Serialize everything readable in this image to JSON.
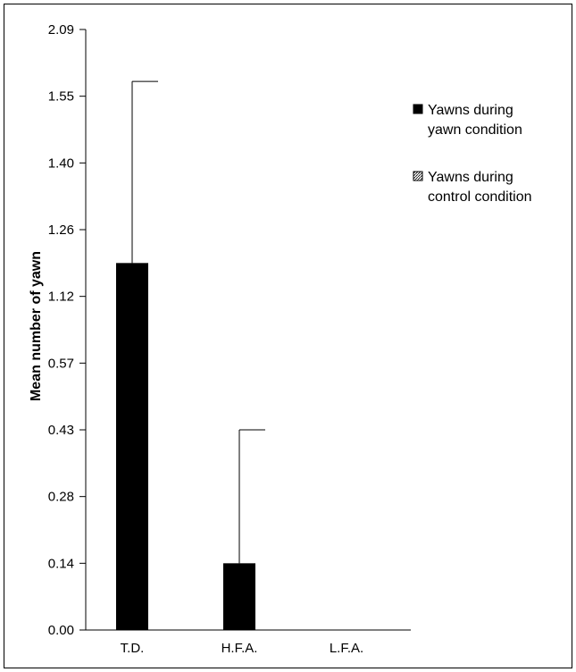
{
  "chart_data": {
    "type": "bar",
    "title": "",
    "xlabel": "",
    "ylabel": "Mean number of yawn",
    "y_tick_labels": [
      "0.00",
      "0.14",
      "0.28",
      "0.43",
      "0.57",
      "1.12",
      "1.26",
      "1.40",
      "1.55",
      "2.09"
    ],
    "categories": [
      "T.D.",
      "H.F.A.",
      "L.F.A."
    ],
    "series": [
      {
        "name": "Yawns during yawn condition",
        "color": "#000000",
        "values": [
          1.19,
          0.14,
          0
        ],
        "error_upper": [
          1.67,
          0.43,
          0
        ]
      },
      {
        "name": "Yawns during control condition",
        "color": "#ffffff",
        "pattern": "hatched",
        "values": [
          0,
          0,
          0
        ]
      }
    ],
    "legend": {
      "position": "right",
      "entries": [
        {
          "line1": "Yawns during",
          "line2": "yawn condition",
          "swatch": "solid-black"
        },
        {
          "line1": "Yawns during",
          "line2": "control condition",
          "swatch": "hatched"
        }
      ]
    },
    "grid": false
  }
}
